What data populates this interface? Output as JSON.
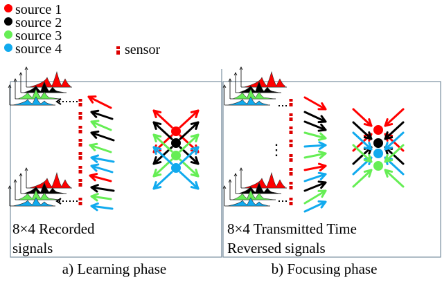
{
  "legend": {
    "sources": [
      {
        "label": "source 1",
        "color": "#ff0000"
      },
      {
        "label": "source 2",
        "color": "#000000"
      },
      {
        "label": "source 3",
        "color": "#66ee55"
      },
      {
        "label": "source 4",
        "color": "#11aaee"
      }
    ],
    "sensor_label": "sensor",
    "sensor_color": "#dd0000"
  },
  "panels": {
    "learning": {
      "text_line1": "8×4 Recorded",
      "text_line2": "signals",
      "caption": "a) Learning phase"
    },
    "focusing": {
      "text_line1": "8×4 Transmitted Time",
      "text_line2": "Reversed signals",
      "caption": "b) Focusing phase",
      "ellipsis": "⋮"
    }
  },
  "colors": {
    "red": "#ff0000",
    "black": "#000000",
    "green": "#66ee55",
    "blue": "#11aaee",
    "panel_border": "#7a8fa0"
  }
}
